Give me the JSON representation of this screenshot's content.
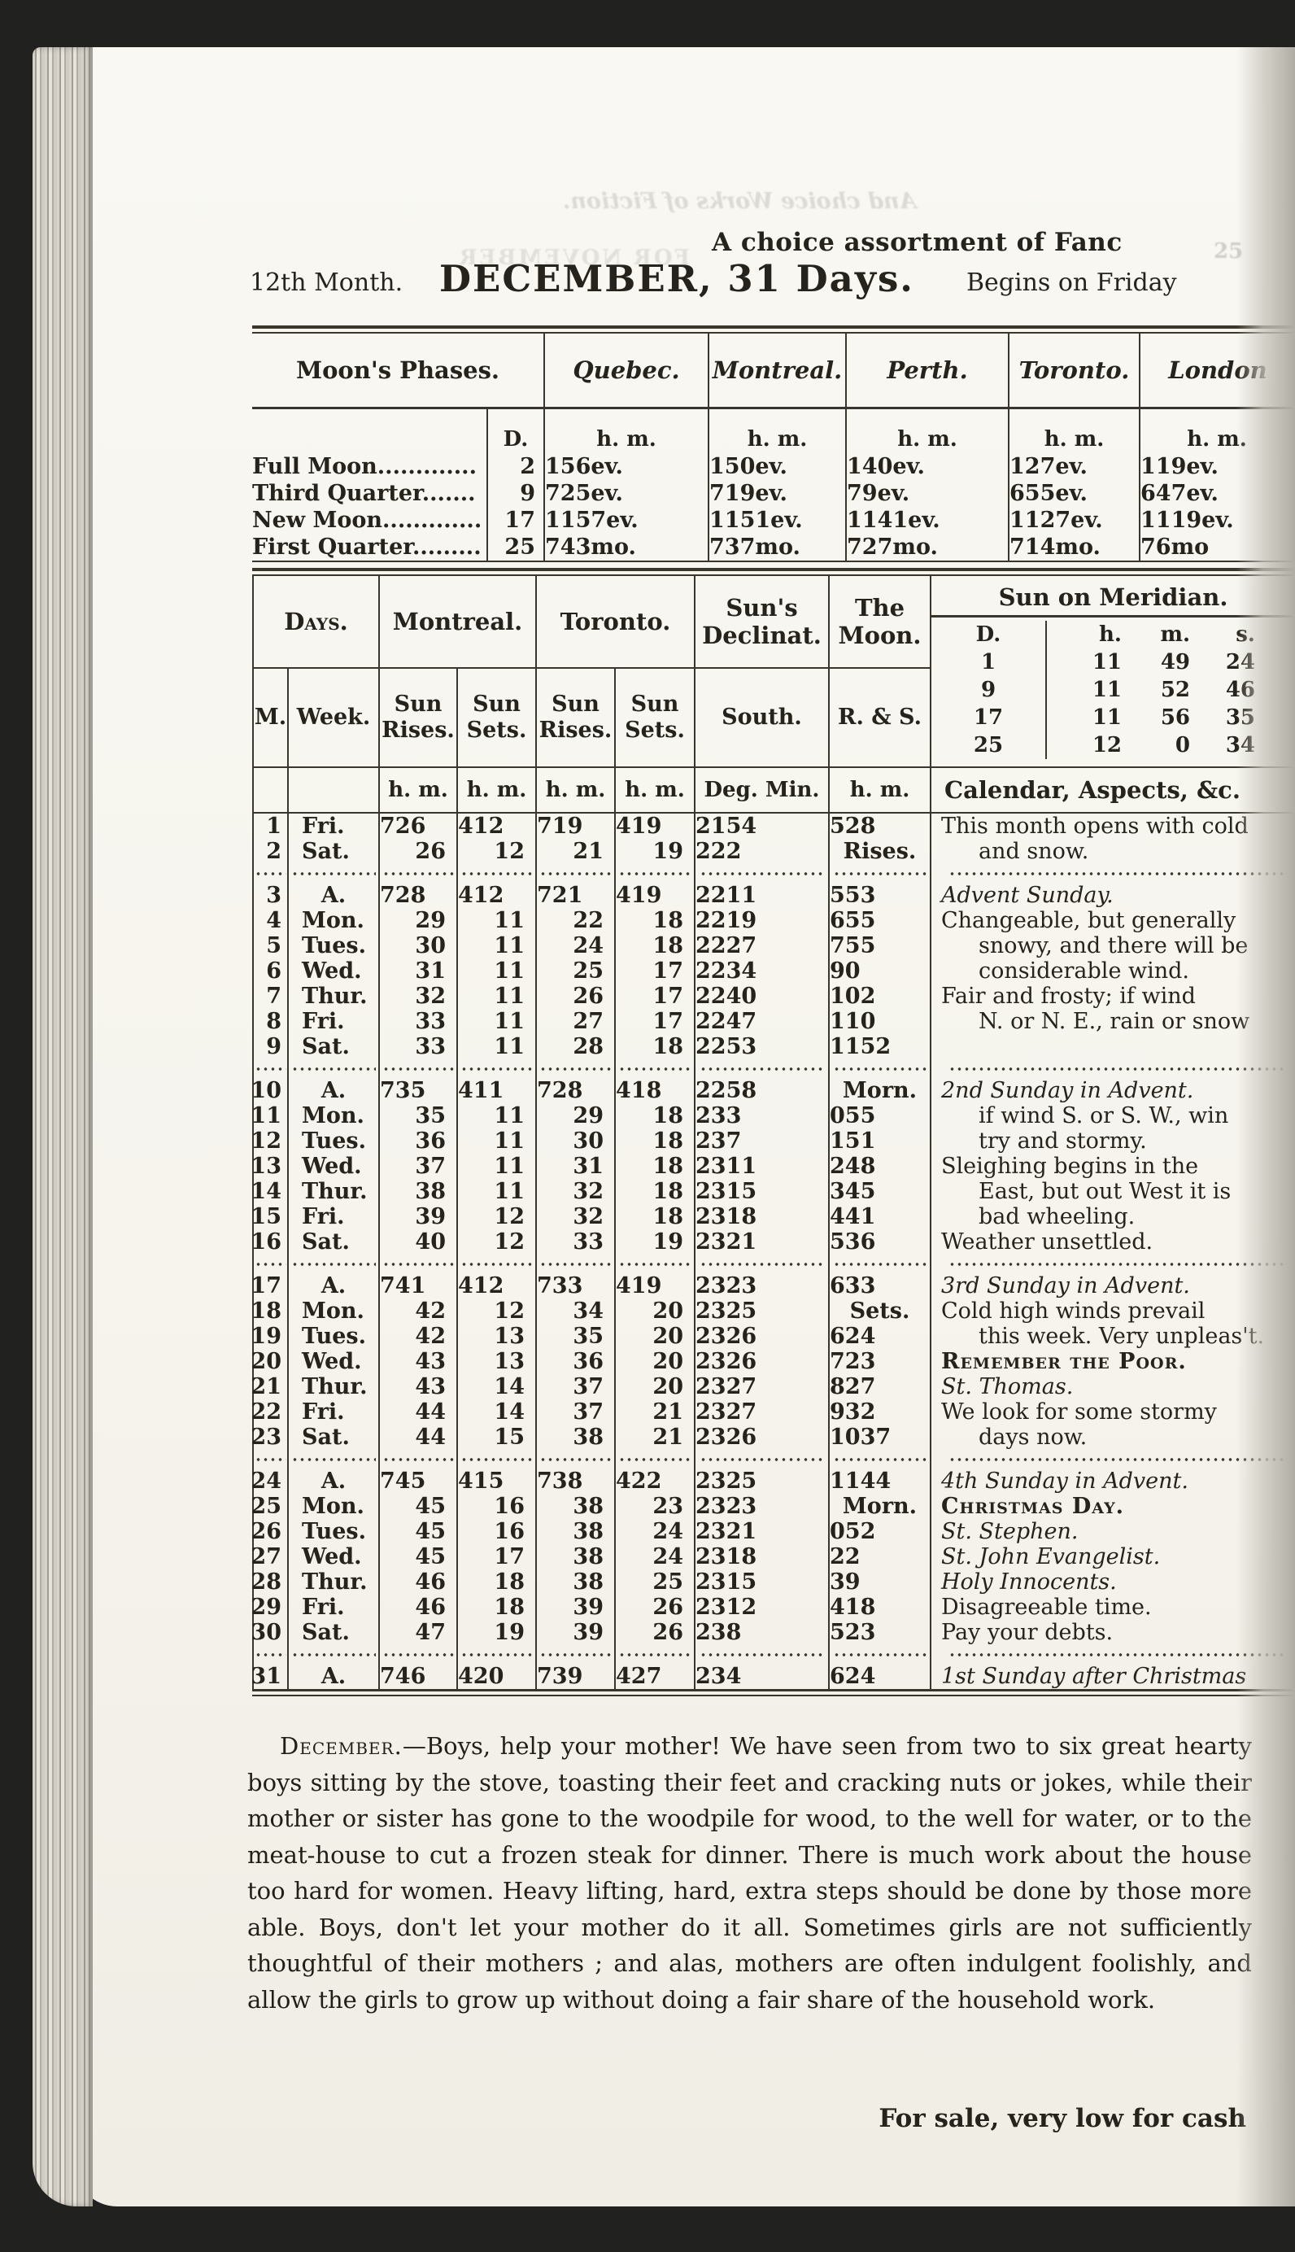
{
  "page_header": {
    "top_line": "A choice assortment of Fanc",
    "month_label": "12th Month.",
    "title": "DECEMBER, 31 Days.",
    "begins": "Begins on Friday"
  },
  "bleed_through": {
    "line1": "And choice Works of Fiction.",
    "line2": "FOR NOVEMBER",
    "corner": "25"
  },
  "moon_phases": {
    "title": "Moon's Phases.",
    "d_label": "D.",
    "unit": "h. m.",
    "cities": [
      "Quebec.",
      "Montreal.",
      "Perth.",
      "Toronto.",
      "London"
    ],
    "rows": [
      {
        "name": "Full Moon.............",
        "d": "2",
        "times": [
          "1 56 ev.",
          "1 50 ev.",
          "1 40 ev.",
          "1 27 ev.",
          "1 19 ev."
        ]
      },
      {
        "name": "Third Quarter.......",
        "d": "9",
        "times": [
          "7 25 ev.",
          "7 19 ev.",
          "7 9 ev.",
          "6 55 ev.",
          "6 47 ev."
        ]
      },
      {
        "name": "New Moon.............",
        "d": "17",
        "times": [
          "11 57 ev.",
          "11 51 ev.",
          "11 41 ev.",
          "11 27 ev.",
          "11 19 ev."
        ]
      },
      {
        "name": "First Quarter.........",
        "d": "25",
        "times": [
          "7 43 mo.",
          "7 37 mo.",
          "7 27 mo.",
          "7 14 mo.",
          "7 6 mo"
        ]
      }
    ]
  },
  "calendar": {
    "headers": {
      "days": "Days.",
      "montreal": "Montreal.",
      "toronto": "Toronto.",
      "declination": "Sun's Declinat.",
      "moon": "The Moon.",
      "meridian": "Sun on Meridian.",
      "m": "M.",
      "week": "Week.",
      "sun_rises": "Sun Rises.",
      "sun_sets": "Sun Sets.",
      "south": "South.",
      "rs": "R. & S.",
      "unit_hm": "h. m.",
      "unit_deg": "Deg. Min.",
      "aspects": "Calendar, Aspects, &c."
    },
    "meridian": {
      "d_label": "D.",
      "h_label": "h.",
      "m_label": "m.",
      "s_label": "s.",
      "rows": [
        [
          "1",
          "11",
          "49",
          "24"
        ],
        [
          "9",
          "11",
          "52",
          "46"
        ],
        [
          "17",
          "11",
          "56",
          "35"
        ],
        [
          "25",
          "12",
          "0",
          "34"
        ]
      ]
    },
    "rows": [
      {
        "m": "1",
        "week": "Fri.",
        "mr": "7 26",
        "ms": "4 12",
        "tr": "7 19",
        "ts": "4 19",
        "deg": "21",
        "min": "54",
        "moon": "5 28",
        "aspect": "This month opens with cold",
        "style": "plain",
        "indent": false,
        "sep_after": false
      },
      {
        "m": "2",
        "week": "Sat.",
        "mr": "26",
        "ms": "12",
        "tr": "21",
        "ts": "19",
        "deg": "22",
        "min": "2",
        "moon": "Rises.",
        "aspect": "and snow.",
        "style": "plain",
        "indent": true,
        "sep_after": true
      },
      {
        "m": "3",
        "week": "A.",
        "mr": "7 28",
        "ms": "4 12",
        "tr": "7 21",
        "ts": "4 19",
        "deg": "22",
        "min": "11",
        "moon": "5 53",
        "aspect": "Advent Sunday.",
        "style": "italic",
        "indent": false,
        "sep_after": false
      },
      {
        "m": "4",
        "week": "Mon.",
        "mr": "29",
        "ms": "11",
        "tr": "22",
        "ts": "18",
        "deg": "22",
        "min": "19",
        "moon": "6 55",
        "aspect": "Changeable, but generally",
        "style": "plain",
        "indent": false,
        "sep_after": false
      },
      {
        "m": "5",
        "week": "Tues.",
        "mr": "30",
        "ms": "11",
        "tr": "24",
        "ts": "18",
        "deg": "22",
        "min": "27",
        "moon": "7 55",
        "aspect": "snowy, and there will be",
        "style": "plain",
        "indent": true,
        "sep_after": false
      },
      {
        "m": "6",
        "week": "Wed.",
        "mr": "31",
        "ms": "11",
        "tr": "25",
        "ts": "17",
        "deg": "22",
        "min": "34",
        "moon": "9 0",
        "aspect": "considerable wind.",
        "style": "plain",
        "indent": true,
        "sep_after": false
      },
      {
        "m": "7",
        "week": "Thur.",
        "mr": "32",
        "ms": "11",
        "tr": "26",
        "ts": "17",
        "deg": "22",
        "min": "40",
        "moon": "10 2",
        "aspect": "Fair and frosty; if wind",
        "style": "plain",
        "indent": false,
        "sep_after": false
      },
      {
        "m": "8",
        "week": "Fri.",
        "mr": "33",
        "ms": "11",
        "tr": "27",
        "ts": "17",
        "deg": "22",
        "min": "47",
        "moon": "11 0",
        "aspect": "N. or N. E., rain or snow",
        "style": "plain",
        "indent": true,
        "sep_after": false
      },
      {
        "m": "9",
        "week": "Sat.",
        "mr": "33",
        "ms": "11",
        "tr": "28",
        "ts": "18",
        "deg": "22",
        "min": "53",
        "moon": "11 52",
        "aspect": "",
        "style": "plain",
        "indent": false,
        "sep_after": true
      },
      {
        "m": "10",
        "week": "A.",
        "mr": "7 35",
        "ms": "4 11",
        "tr": "7 28",
        "ts": "4 18",
        "deg": "22",
        "min": "58",
        "moon": "Morn.",
        "aspect": "2nd Sunday in Advent.",
        "style": "italic",
        "indent": false,
        "sep_after": false
      },
      {
        "m": "11",
        "week": "Mon.",
        "mr": "35",
        "ms": "11",
        "tr": "29",
        "ts": "18",
        "deg": "23",
        "min": "3",
        "moon": "0 55",
        "aspect": "if wind S. or S. W., win",
        "style": "plain",
        "indent": true,
        "sep_after": false
      },
      {
        "m": "12",
        "week": "Tues.",
        "mr": "36",
        "ms": "11",
        "tr": "30",
        "ts": "18",
        "deg": "23",
        "min": "7",
        "moon": "1 51",
        "aspect": "try and stormy.",
        "style": "plain",
        "indent": true,
        "sep_after": false
      },
      {
        "m": "13",
        "week": "Wed.",
        "mr": "37",
        "ms": "11",
        "tr": "31",
        "ts": "18",
        "deg": "23",
        "min": "11",
        "moon": "2 48",
        "aspect": "Sleighing begins in the",
        "style": "plain",
        "indent": false,
        "sep_after": false
      },
      {
        "m": "14",
        "week": "Thur.",
        "mr": "38",
        "ms": "11",
        "tr": "32",
        "ts": "18",
        "deg": "23",
        "min": "15",
        "moon": "3 45",
        "aspect": "East, but out West it is",
        "style": "plain",
        "indent": true,
        "sep_after": false
      },
      {
        "m": "15",
        "week": "Fri.",
        "mr": "39",
        "ms": "12",
        "tr": "32",
        "ts": "18",
        "deg": "23",
        "min": "18",
        "moon": "4 41",
        "aspect": "bad wheeling.",
        "style": "plain",
        "indent": true,
        "sep_after": false
      },
      {
        "m": "16",
        "week": "Sat.",
        "mr": "40",
        "ms": "12",
        "tr": "33",
        "ts": "19",
        "deg": "23",
        "min": "21",
        "moon": "5 36",
        "aspect": "Weather unsettled.",
        "style": "plain",
        "indent": false,
        "sep_after": true
      },
      {
        "m": "17",
        "week": "A.",
        "mr": "7 41",
        "ms": "4 12",
        "tr": "7 33",
        "ts": "4 19",
        "deg": "23",
        "min": "23",
        "moon": "6 33",
        "aspect": "3rd Sunday in Advent.",
        "style": "italic",
        "indent": false,
        "sep_after": false
      },
      {
        "m": "18",
        "week": "Mon.",
        "mr": "42",
        "ms": "12",
        "tr": "34",
        "ts": "20",
        "deg": "23",
        "min": "25",
        "moon": "Sets.",
        "aspect": "Cold high winds prevail",
        "style": "plain",
        "indent": false,
        "sep_after": false
      },
      {
        "m": "19",
        "week": "Tues.",
        "mr": "42",
        "ms": "13",
        "tr": "35",
        "ts": "20",
        "deg": "23",
        "min": "26",
        "moon": "6 24",
        "aspect": "this week. Very unpleas't.",
        "style": "plain",
        "indent": true,
        "sep_after": false
      },
      {
        "m": "20",
        "week": "Wed.",
        "mr": "43",
        "ms": "13",
        "tr": "36",
        "ts": "20",
        "deg": "23",
        "min": "26",
        "moon": "7 23",
        "aspect": "Remember the Poor.",
        "style": "caps",
        "indent": false,
        "sep_after": false
      },
      {
        "m": "21",
        "week": "Thur.",
        "mr": "43",
        "ms": "14",
        "tr": "37",
        "ts": "20",
        "deg": "23",
        "min": "27",
        "moon": "8 27",
        "aspect": "St. Thomas.",
        "style": "italic",
        "indent": false,
        "sep_after": false
      },
      {
        "m": "22",
        "week": "Fri.",
        "mr": "44",
        "ms": "14",
        "tr": "37",
        "ts": "21",
        "deg": "23",
        "min": "27",
        "moon": "9 32",
        "aspect": "We look for some stormy",
        "style": "plain",
        "indent": false,
        "sep_after": false
      },
      {
        "m": "23",
        "week": "Sat.",
        "mr": "44",
        "ms": "15",
        "tr": "38",
        "ts": "21",
        "deg": "23",
        "min": "26",
        "moon": "10 37",
        "aspect": "days now.",
        "style": "plain",
        "indent": true,
        "sep_after": true
      },
      {
        "m": "24",
        "week": "A.",
        "mr": "7 45",
        "ms": "4 15",
        "tr": "7 38",
        "ts": "4 22",
        "deg": "23",
        "min": "25",
        "moon": "11 44",
        "aspect": "4th Sunday in Advent.",
        "style": "italic",
        "indent": false,
        "sep_after": false
      },
      {
        "m": "25",
        "week": "Mon.",
        "mr": "45",
        "ms": "16",
        "tr": "38",
        "ts": "23",
        "deg": "23",
        "min": "23",
        "moon": "Morn.",
        "aspect": "Christmas Day.",
        "style": "caps",
        "indent": false,
        "sep_after": false
      },
      {
        "m": "26",
        "week": "Tues.",
        "mr": "45",
        "ms": "16",
        "tr": "38",
        "ts": "24",
        "deg": "23",
        "min": "21",
        "moon": "0 52",
        "aspect": "St. Stephen.",
        "style": "italic",
        "indent": false,
        "sep_after": false
      },
      {
        "m": "27",
        "week": "Wed.",
        "mr": "45",
        "ms": "17",
        "tr": "38",
        "ts": "24",
        "deg": "23",
        "min": "18",
        "moon": "2 2",
        "aspect": "St. John Evangelist.",
        "style": "italic",
        "indent": false,
        "sep_after": false
      },
      {
        "m": "28",
        "week": "Thur.",
        "mr": "46",
        "ms": "18",
        "tr": "38",
        "ts": "25",
        "deg": "23",
        "min": "15",
        "moon": "3 9",
        "aspect": "Holy Innocents.",
        "style": "italic",
        "indent": false,
        "sep_after": false
      },
      {
        "m": "29",
        "week": "Fri.",
        "mr": "46",
        "ms": "18",
        "tr": "39",
        "ts": "26",
        "deg": "23",
        "min": "12",
        "moon": "4 18",
        "aspect": "Disagreeable time.",
        "style": "plain",
        "indent": false,
        "sep_after": false
      },
      {
        "m": "30",
        "week": "Sat.",
        "mr": "47",
        "ms": "19",
        "tr": "39",
        "ts": "26",
        "deg": "23",
        "min": "8",
        "moon": "5 23",
        "aspect": "Pay your debts.",
        "style": "plain",
        "indent": false,
        "sep_after": true
      },
      {
        "m": "31",
        "week": "A.",
        "mr": "7 46",
        "ms": "4 20",
        "tr": "7 39",
        "ts": "4 27",
        "deg": "23",
        "min": "4",
        "moon": "6 24",
        "aspect": "1st Sunday after Christmas",
        "style": "italic",
        "indent": false,
        "sep_after": false
      }
    ]
  },
  "footer": {
    "para_lead": "December.",
    "para_text": "—Boys, help your mother!  We have seen from two to six great hearty boys sitting by the stove, toasting their feet and cracking nuts or jokes, while their mother or sister has gone to the woodpile for wood, to the well for water, or to the meat-house to cut a frozen steak for dinner.  There is much work about the house too hard for women. Heavy lifting, hard, extra steps should be done by those more able. Boys, don't let your mother do it all. Sometimes girls are not sufficiently thoughtful of their mothers ; and alas, mothers are often indulgent foolishly, and allow the girls to grow up without doing a fair share of the household work.",
    "sale_line": "For sale, very low for cash"
  }
}
